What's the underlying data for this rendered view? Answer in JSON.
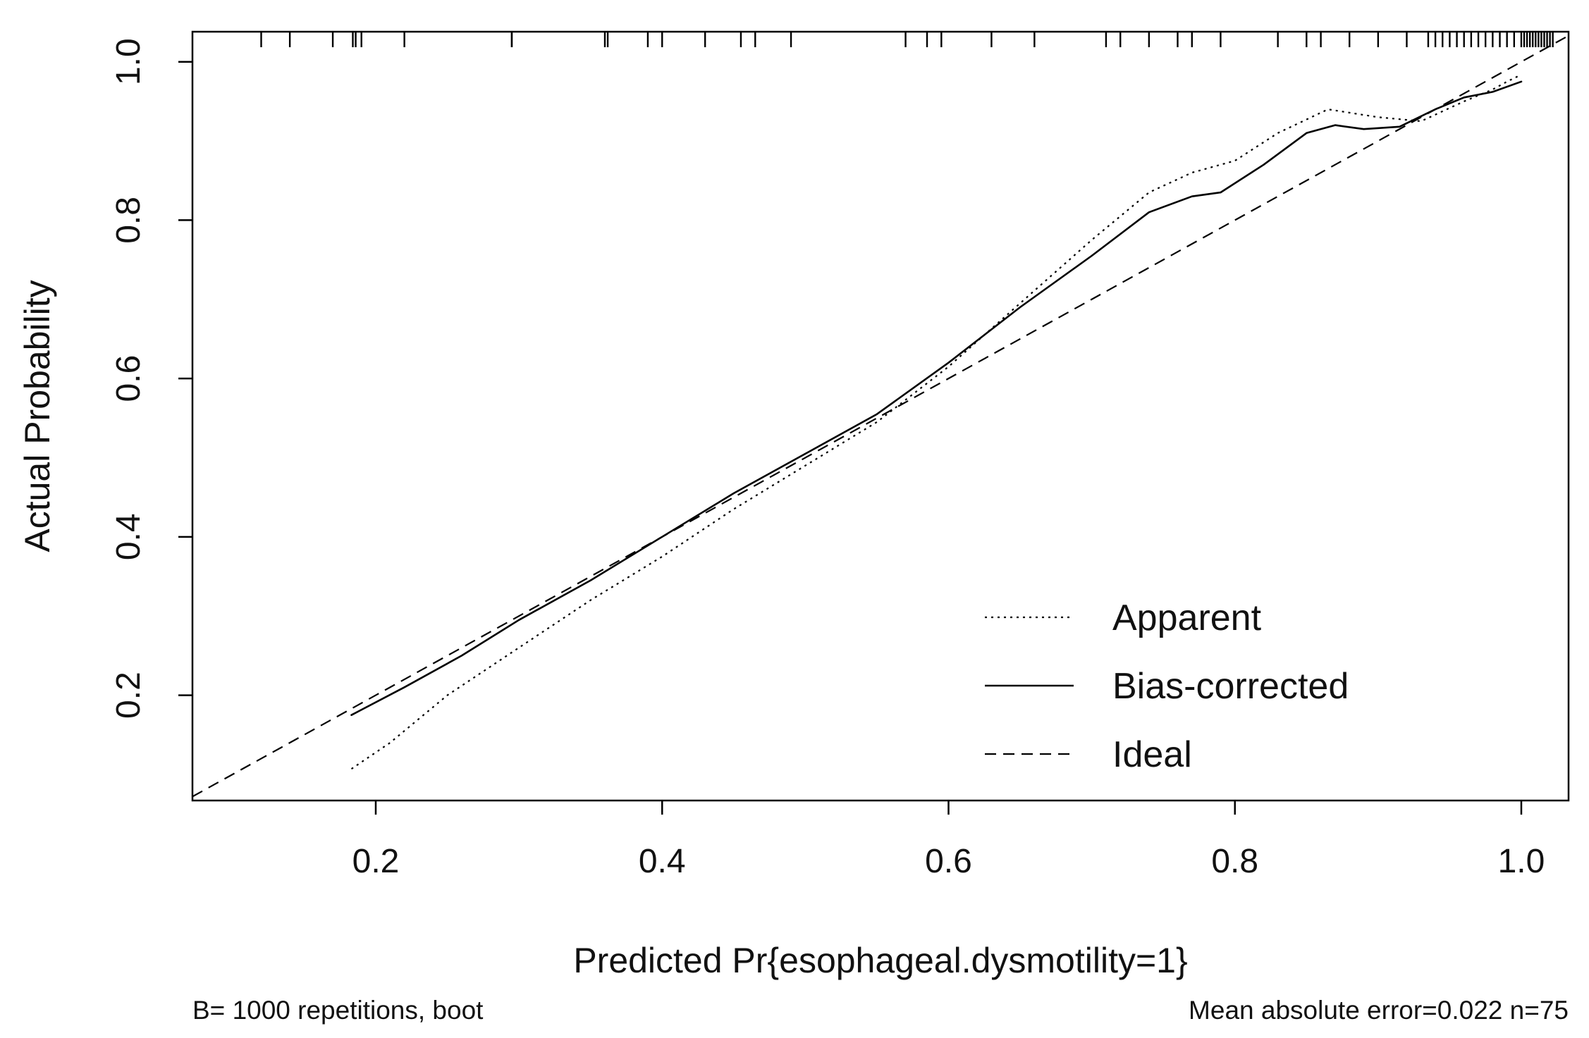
{
  "chart_data": {
    "type": "line",
    "title": "",
    "xlabel": "Predicted Pr{esophageal.dysmotility=1}",
    "ylabel": "Actual Probability",
    "xlim": [
      0.072,
      1.033
    ],
    "ylim": [
      0.067,
      1.038
    ],
    "x_ticks": [
      0.2,
      0.4,
      0.6,
      0.8,
      1.0
    ],
    "x_tick_labels": [
      "0.2",
      "0.4",
      "0.6",
      "0.8",
      "1.0"
    ],
    "y_ticks": [
      0.2,
      0.4,
      0.6,
      0.8,
      1.0
    ],
    "y_tick_labels": [
      "0.2",
      "0.4",
      "0.6",
      "0.8",
      "1.0"
    ],
    "grid": false,
    "legend_position": "bottom-right",
    "footnote_left": "B= 1000 repetitions, boot",
    "footnote_right": "Mean absolute error=0.022 n=75",
    "series": [
      {
        "name": "Apparent",
        "style": "dotted",
        "color": "#000000",
        "x": [
          0.183,
          0.21,
          0.25,
          0.3,
          0.35,
          0.4,
          0.45,
          0.5,
          0.55,
          0.6,
          0.65,
          0.7,
          0.74,
          0.77,
          0.8,
          0.83,
          0.865,
          0.9,
          0.93,
          0.96,
          0.98,
          0.99,
          0.998
        ],
        "y": [
          0.107,
          0.14,
          0.2,
          0.26,
          0.32,
          0.375,
          0.435,
          0.49,
          0.545,
          0.615,
          0.695,
          0.775,
          0.835,
          0.86,
          0.875,
          0.91,
          0.94,
          0.93,
          0.925,
          0.95,
          0.965,
          0.975,
          0.982
        ]
      },
      {
        "name": "Bias-corrected",
        "style": "solid",
        "color": "#000000",
        "x": [
          0.183,
          0.22,
          0.26,
          0.3,
          0.35,
          0.4,
          0.45,
          0.5,
          0.55,
          0.6,
          0.65,
          0.7,
          0.74,
          0.77,
          0.79,
          0.82,
          0.85,
          0.87,
          0.89,
          0.915,
          0.94,
          0.96,
          0.98,
          1.0
        ],
        "y": [
          0.175,
          0.21,
          0.25,
          0.295,
          0.345,
          0.4,
          0.455,
          0.505,
          0.555,
          0.62,
          0.69,
          0.755,
          0.81,
          0.83,
          0.835,
          0.87,
          0.91,
          0.92,
          0.915,
          0.918,
          0.94,
          0.955,
          0.962,
          0.975
        ]
      },
      {
        "name": "Ideal",
        "style": "dashed",
        "color": "#000000",
        "x": [
          0.072,
          1.033
        ],
        "y": [
          0.072,
          1.033
        ]
      }
    ],
    "rug_x": [
      0.12,
      0.14,
      0.17,
      0.184,
      0.186,
      0.19,
      0.22,
      0.295,
      0.295,
      0.36,
      0.362,
      0.39,
      0.4,
      0.43,
      0.455,
      0.465,
      0.49,
      0.57,
      0.585,
      0.595,
      0.63,
      0.66,
      0.71,
      0.72,
      0.74,
      0.76,
      0.77,
      0.79,
      0.83,
      0.85,
      0.86,
      0.88,
      0.9,
      0.92,
      0.935,
      0.94,
      0.945,
      0.95,
      0.955,
      0.96,
      0.965,
      0.97,
      0.975,
      0.98,
      0.985,
      0.99,
      0.995,
      1.0,
      1.002,
      1.004,
      1.006,
      1.008,
      1.01,
      1.012,
      1.014,
      1.016,
      1.018,
      1.02,
      1.022
    ]
  }
}
